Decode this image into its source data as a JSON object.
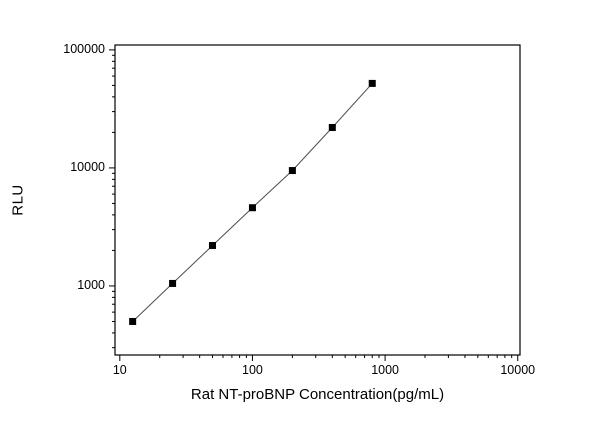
{
  "chart_data": {
    "type": "scatter",
    "title": "",
    "xlabel": "Rat NT-proBNP Concentration(pg/mL)",
    "ylabel": "RLU",
    "x_scale": "log",
    "y_scale": "log",
    "xlim": [
      9.2,
      10400
    ],
    "ylim": [
      260,
      110000
    ],
    "x_ticks": [
      10,
      100,
      1000,
      10000
    ],
    "y_ticks": [
      1000,
      10000,
      100000
    ],
    "x": [
      12.5,
      25,
      50,
      100,
      200,
      400,
      800
    ],
    "y": [
      500,
      1050,
      2200,
      4600,
      9500,
      22000,
      52000
    ],
    "marker": "square",
    "marker_size": 7,
    "marker_color": "#000000",
    "line_color": "#4d4d4d",
    "frame_color": "#000000",
    "tick_label_color": "#000000",
    "grid": false,
    "legend": null
  }
}
